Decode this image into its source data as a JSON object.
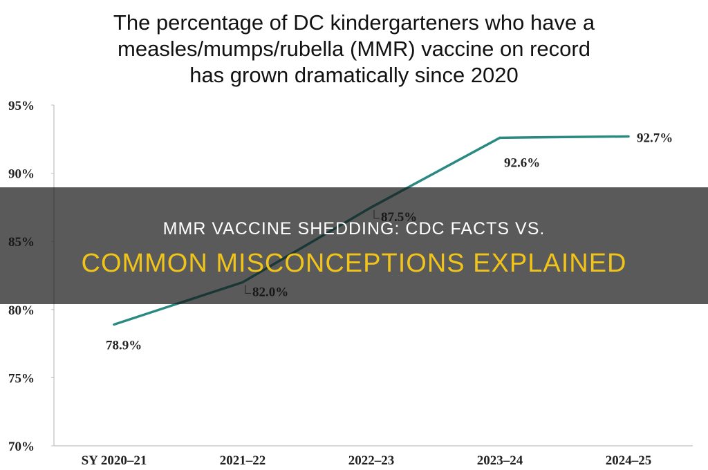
{
  "banner": {
    "line1": "MMR VACCINE SHEDDING: CDC FACTS VS.",
    "line2": "COMMON MISCONCEPTIONS EXPLAINED",
    "line2_color": "#f0c419"
  },
  "chart_data": {
    "type": "line",
    "title": "The percentage of  DC kindergarteners who have a\nmeasles/mumps/rubella (MMR) vaccine on record\nhas grown dramatically since 2020",
    "xlabel": "",
    "ylabel": "",
    "categories": [
      "SY 2020–21",
      "2021–22",
      "2022–23",
      "2023–24",
      "2024–25"
    ],
    "values": [
      78.9,
      82.0,
      87.5,
      92.6,
      92.7
    ],
    "data_labels": [
      "78.9%",
      "82.0%",
      "87.5%",
      "92.6%",
      "92.7%"
    ],
    "ylim": [
      70,
      95
    ],
    "yticks": [
      70,
      75,
      80,
      85,
      90,
      95
    ],
    "ytick_labels": [
      "70%",
      "75%",
      "80%",
      "85%",
      "90%",
      "95%"
    ],
    "line_color": "#2a8a82",
    "grid": false
  }
}
